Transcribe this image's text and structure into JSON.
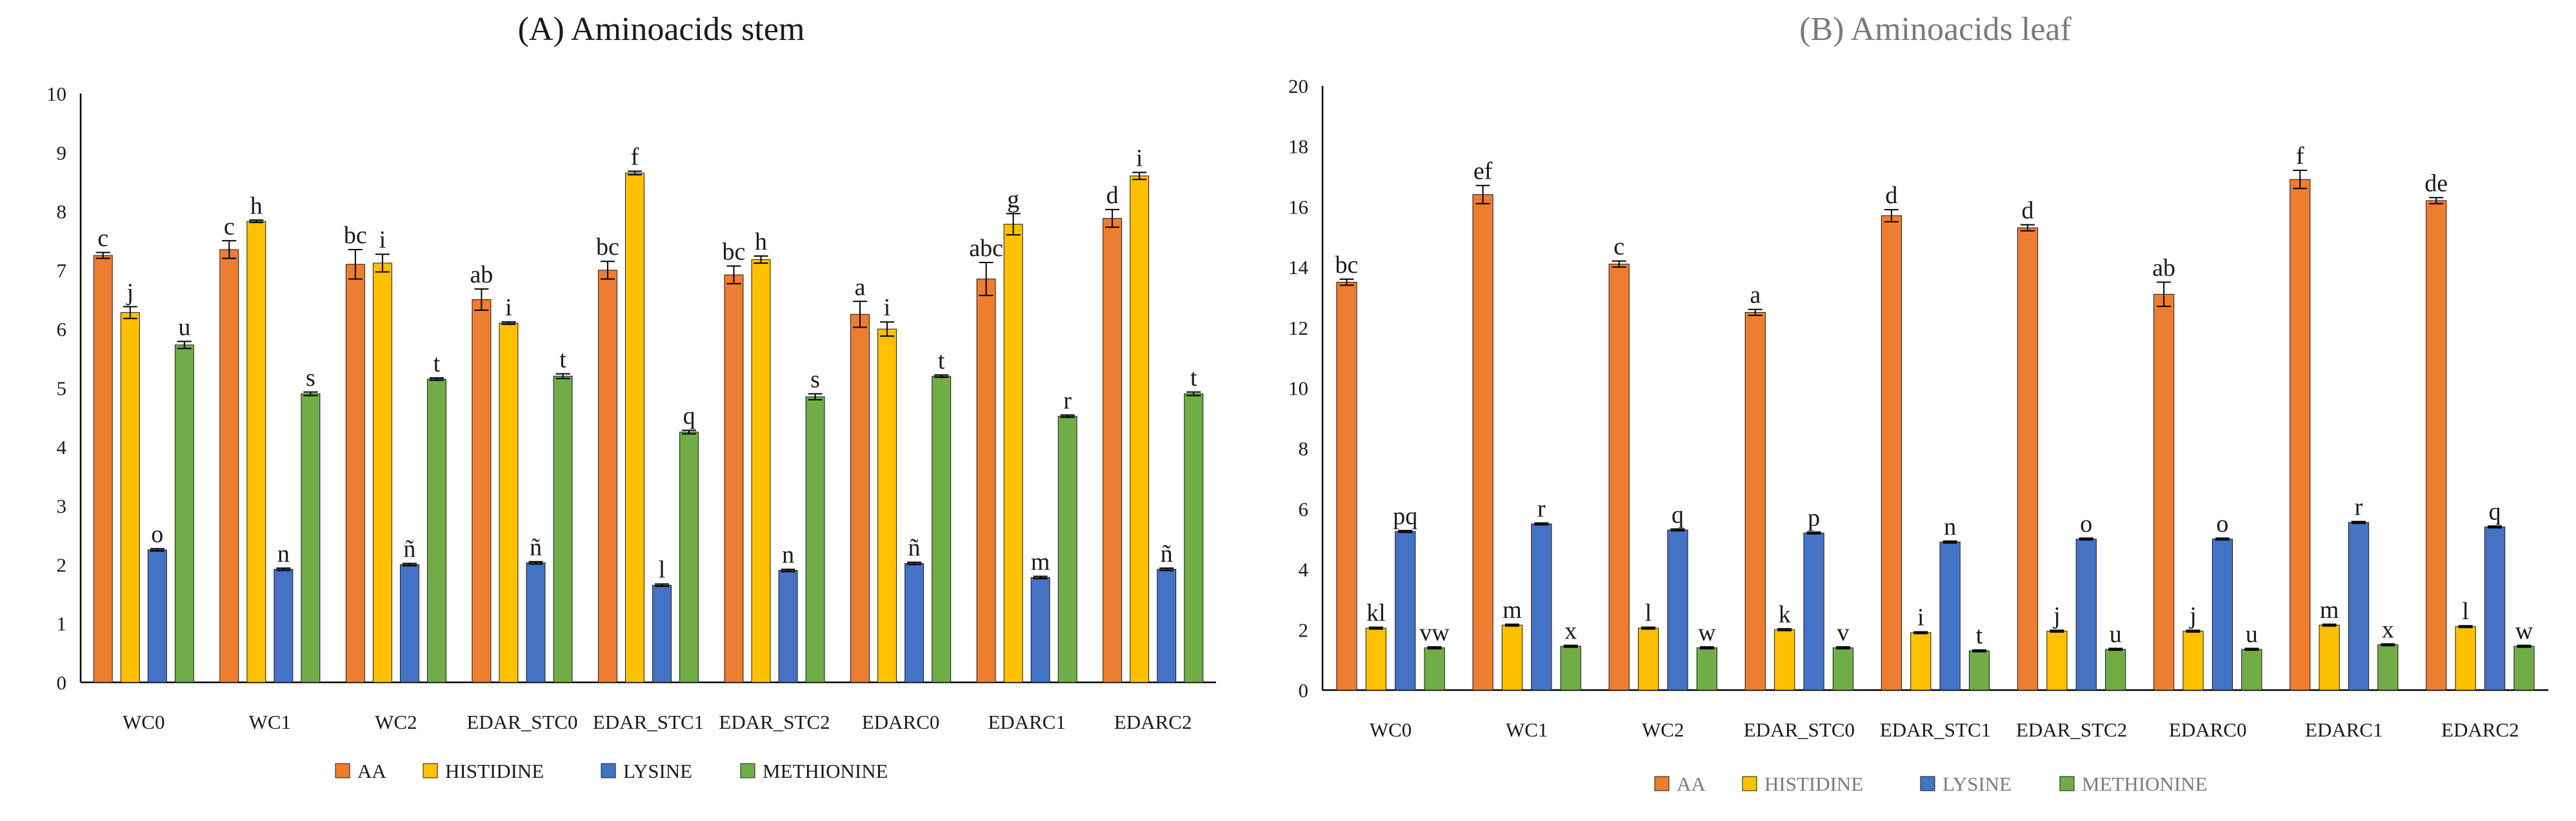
{
  "chart_data": [
    {
      "type": "bar",
      "title": "(A)  Aminoacids stem",
      "xlabel": "",
      "ylabel": "",
      "ylim": [
        0,
        10
      ],
      "yticks": [
        0,
        1,
        2,
        3,
        4,
        5,
        6,
        7,
        8,
        9,
        10
      ],
      "categories": [
        "WC0",
        "WC1",
        "WC2",
        "EDAR_STC0",
        "EDAR_STC1",
        "EDAR_STC2",
        "EDARC0",
        "EDARC1",
        "EDARC2"
      ],
      "series": [
        {
          "name": "AA",
          "color": "#ED7D31",
          "values": [
            7.25,
            7.35,
            7.1,
            6.5,
            7.0,
            6.92,
            6.25,
            6.85,
            7.88
          ],
          "errors": [
            0.05,
            0.15,
            0.25,
            0.18,
            0.15,
            0.15,
            0.22,
            0.28,
            0.15
          ],
          "labels": [
            "c",
            "c",
            "bc",
            "ab",
            "bc",
            "bc",
            "a",
            "abc",
            "d"
          ]
        },
        {
          "name": "HISTIDINE",
          "color": "#FFC000",
          "values": [
            6.28,
            7.83,
            7.12,
            6.1,
            8.65,
            7.18,
            6.0,
            7.78,
            8.6
          ],
          "errors": [
            0.1,
            0.02,
            0.15,
            0.02,
            0.03,
            0.06,
            0.12,
            0.18,
            0.06
          ],
          "labels": [
            "j",
            "h",
            "i",
            "i",
            "f",
            "h",
            "i",
            "g",
            "i"
          ]
        },
        {
          "name": "LYSINE",
          "color": "#4472C4",
          "values": [
            2.25,
            1.92,
            2.0,
            2.03,
            1.65,
            1.9,
            2.02,
            1.78,
            1.92
          ],
          "errors": [
            0.02,
            0.02,
            0.02,
            0.02,
            0.02,
            0.02,
            0.02,
            0.02,
            0.02
          ],
          "labels": [
            "o",
            "n",
            "ñ",
            "ñ",
            "l",
            "n",
            "ñ",
            "m",
            "ñ"
          ]
        },
        {
          "name": "METHIONINE",
          "color": "#70AD47",
          "values": [
            5.73,
            4.9,
            5.15,
            5.2,
            4.25,
            4.85,
            5.2,
            4.52,
            4.9
          ],
          "errors": [
            0.06,
            0.03,
            0.02,
            0.04,
            0.03,
            0.05,
            0.02,
            0.02,
            0.03
          ],
          "labels": [
            "u",
            "s",
            "t",
            "t",
            "q",
            "s",
            "t",
            "r",
            "t"
          ]
        }
      ],
      "legend": "bottom"
    },
    {
      "type": "bar",
      "title": "(B)  Aminoacids leaf",
      "xlabel": "",
      "ylabel": "",
      "ylim": [
        0,
        20
      ],
      "yticks": [
        0,
        2,
        4,
        6,
        8,
        10,
        12,
        14,
        16,
        18,
        20
      ],
      "categories": [
        "WC0",
        "WC1",
        "WC2",
        "EDAR_STC0",
        "EDAR_STC1",
        "EDAR_STC2",
        "EDARC0",
        "EDARC1",
        "EDARC2"
      ],
      "series": [
        {
          "name": "AA",
          "color": "#ED7D31",
          "values": [
            13.5,
            16.4,
            14.1,
            12.5,
            15.7,
            15.3,
            13.1,
            16.9,
            16.2
          ],
          "errors": [
            0.1,
            0.3,
            0.1,
            0.1,
            0.2,
            0.1,
            0.4,
            0.3,
            0.1
          ],
          "labels": [
            "bc",
            "ef",
            "c",
            "a",
            "d",
            "d",
            "ab",
            "f",
            "de"
          ]
        },
        {
          "name": "HISTIDINE",
          "color": "#FFC000",
          "values": [
            2.05,
            2.15,
            2.05,
            2.0,
            1.9,
            1.95,
            1.95,
            2.15,
            2.1
          ],
          "errors": [
            0.03,
            0.03,
            0.03,
            0.03,
            0.03,
            0.03,
            0.03,
            0.03,
            0.03
          ],
          "labels": [
            "kl",
            "m",
            "l",
            "k",
            "i",
            "j",
            "j",
            "m",
            "l"
          ]
        },
        {
          "name": "LYSINE",
          "color": "#4472C4",
          "values": [
            5.25,
            5.5,
            5.3,
            5.2,
            4.9,
            5.0,
            5.0,
            5.55,
            5.4
          ],
          "errors": [
            0.03,
            0.03,
            0.03,
            0.03,
            0.03,
            0.03,
            0.03,
            0.03,
            0.03
          ],
          "labels": [
            "pq",
            "r",
            "q",
            "p",
            "n",
            "o",
            "o",
            "r",
            "q"
          ]
        },
        {
          "name": "METHIONINE",
          "color": "#70AD47",
          "values": [
            1.4,
            1.45,
            1.4,
            1.4,
            1.3,
            1.35,
            1.35,
            1.5,
            1.45
          ],
          "errors": [
            0.03,
            0.03,
            0.03,
            0.03,
            0.03,
            0.03,
            0.03,
            0.03,
            0.03
          ],
          "labels": [
            "vw",
            "x",
            "w",
            "v",
            "t",
            "u",
            "u",
            "x",
            "w"
          ]
        }
      ],
      "legend": "bottom"
    }
  ]
}
